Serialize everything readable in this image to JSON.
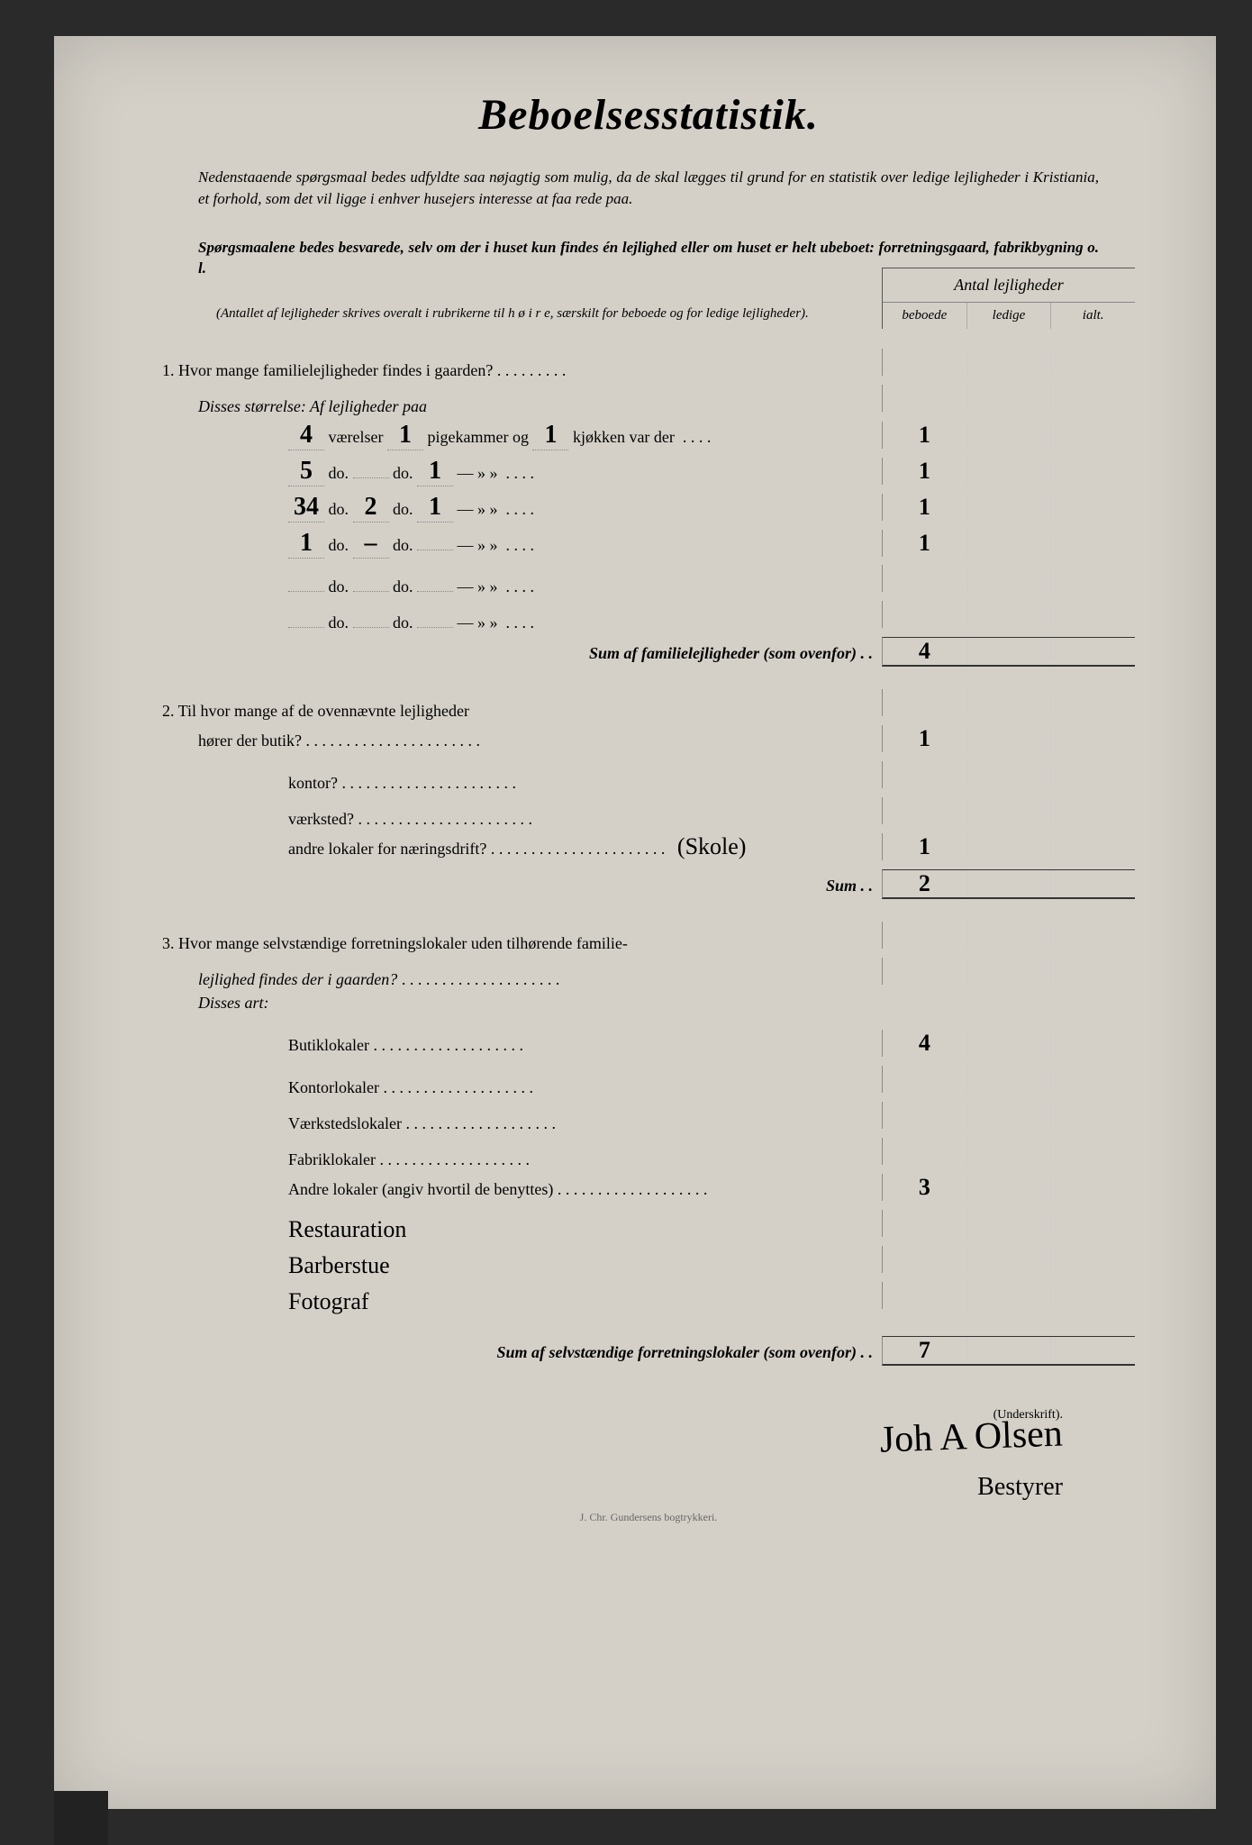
{
  "title": "Beboelsesstatistik.",
  "intro_p1": "Nedenstaaende spørgsmaal bedes udfyldte saa nøjagtig som mulig, da de skal lægges til grund for en statistik over ledige lejligheder i Kristiania, et forhold, som det vil ligge i enhver husejers interesse at faa rede paa.",
  "intro_p2": "Spørgsmaalene bedes besvarede, selv om der i huset kun findes én lejlighed eller om huset er helt ubeboet: forretningsgaard, fabrikbygning o. l.",
  "intro_note": "(Antallet af lejligheder skrives overalt i rubrikerne til h ø i r e, særskilt for beboede og for ledige lejligheder).",
  "col_header": "Antal lejligheder",
  "col_sub": {
    "a": "beboede",
    "b": "ledige",
    "c": "ialt."
  },
  "q1": "1.  Hvor mange familielejligheder findes i gaarden?",
  "q1_sub": "Disses størrelse:  Af lejligheder paa",
  "rows1": [
    {
      "v": "4",
      "v_lbl": "værelser",
      "p": "1",
      "p_lbl": "pigekammer og",
      "k": "1",
      "k_lbl": "kjøkken var der",
      "b": "1"
    },
    {
      "v": "5",
      "v_lbl": "do.",
      "p": "",
      "p_lbl": "do.",
      "k": "1",
      "k_lbl": "—        »      »",
      "b": "1"
    },
    {
      "v": "34",
      "v_lbl": "do.",
      "p": "2",
      "p_lbl": "do.",
      "k": "1",
      "k_lbl": "—        »      »",
      "b": "1"
    },
    {
      "v": "1",
      "v_lbl": "do.",
      "p": "–",
      "p_lbl": "do.",
      "k": "",
      "k_lbl": "—        »      »",
      "b": "1"
    },
    {
      "v": "",
      "v_lbl": "do.",
      "p": "",
      "p_lbl": "do.",
      "k": "",
      "k_lbl": "—        »      »",
      "b": ""
    },
    {
      "v": "",
      "v_lbl": "do.",
      "p": "",
      "p_lbl": "do.",
      "k": "",
      "k_lbl": "—        »      »",
      "b": ""
    }
  ],
  "sum1_label": "Sum af familielejligheder (som ovenfor) . .",
  "sum1_val": "4",
  "q2": "2.  Til hvor mange af de ovennævnte lejligheder",
  "q2_rows": [
    {
      "label": "hører der butik?",
      "val": "1"
    },
    {
      "label": "kontor?",
      "val": ""
    },
    {
      "label": "værksted?",
      "val": ""
    },
    {
      "label": "andre lokaler for næringsdrift?",
      "note": "(Skole)",
      "val": "1"
    }
  ],
  "sum2_label": "Sum . .",
  "sum2_val": "2",
  "q3a": "3.  Hvor mange selvstændige forretningslokaler uden tilhørende familie-",
  "q3b": "lejlighed findes der i gaarden?",
  "q3_sub": "Disses art:",
  "q3_rows": [
    {
      "label": "Butiklokaler",
      "val": "4"
    },
    {
      "label": "Kontorlokaler",
      "val": ""
    },
    {
      "label": "Værkstedslokaler",
      "val": ""
    },
    {
      "label": "Fabriklokaler",
      "val": ""
    },
    {
      "label": "Andre lokaler (angiv hvortil de benyttes)",
      "val": "3"
    }
  ],
  "q3_handwritten": [
    "Restauration",
    "Barberstue",
    "Fotograf"
  ],
  "sum3_label": "Sum af selvstændige forretningslokaler (som ovenfor) . .",
  "sum3_val": "7",
  "sig_label": "(Underskrift).",
  "signature": "Joh A Olsen",
  "signature2": "Bestyrer",
  "printer": "J. Chr. Gundersens bogtrykkeri."
}
